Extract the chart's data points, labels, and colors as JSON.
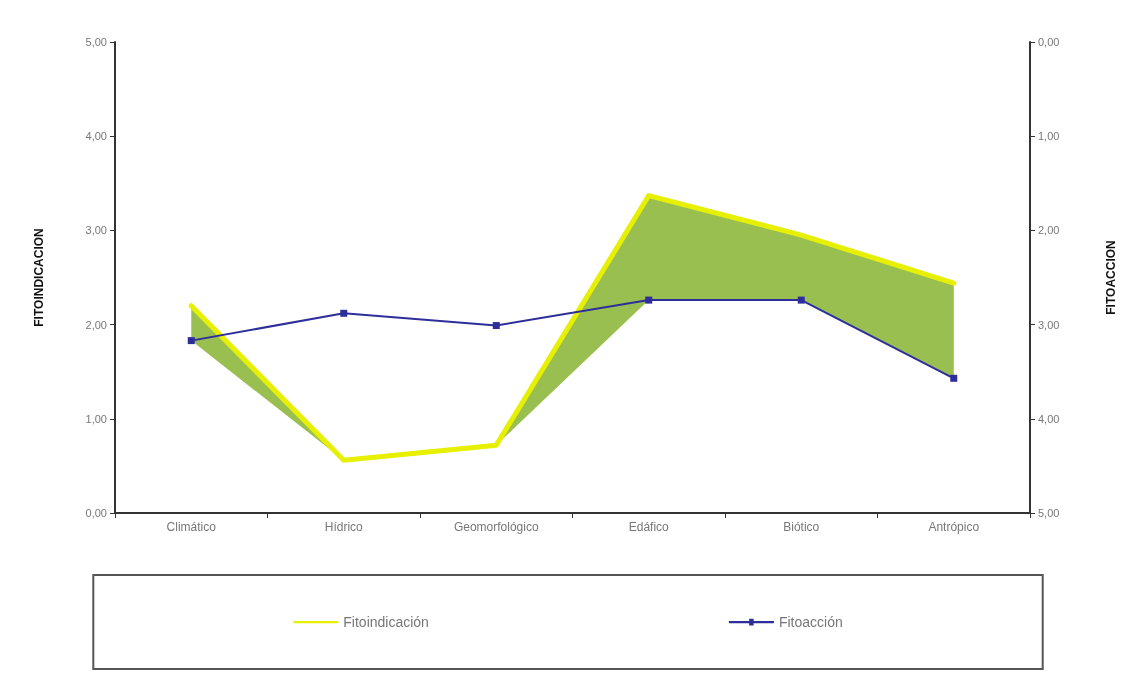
{
  "chart_data": {
    "type": "line",
    "ylabel": "FITOINDICACION",
    "y2label": "FITOACCION",
    "categories": [
      "Climático",
      "Hídrico",
      "Geomorfológico",
      "Edáfico",
      "Biótico",
      "Antrópico"
    ],
    "series": [
      {
        "name": "Fitoindicación",
        "color": "#e6f000",
        "marker": "none",
        "values": [
          2.2,
          0.56,
          0.72,
          3.37,
          2.95,
          2.44
        ],
        "lower": [
          1.83,
          0.56,
          0.72,
          2.26,
          2.26,
          1.43
        ],
        "upper": [
          2.2,
          0.56,
          0.72,
          3.37,
          2.95,
          2.44
        ]
      },
      {
        "name": "Fitoacción",
        "color": "#2e2e9a",
        "marker": "square",
        "axis": "y2",
        "values": [
          3.17,
          2.88,
          3.01,
          2.74,
          2.74,
          3.57
        ]
      }
    ],
    "ylim": [
      0,
      5
    ],
    "yticks": [
      {
        "value": 0,
        "label": "0,00"
      },
      {
        "value": 1,
        "label": "1,00"
      },
      {
        "value": 2,
        "label": "2,00"
      },
      {
        "value": 3,
        "label": "3,00"
      },
      {
        "value": 4,
        "label": "4,00"
      },
      {
        "value": 5,
        "label": "5,00"
      }
    ],
    "y2lim": [
      5,
      0
    ],
    "y2ticks": [
      {
        "value": 0,
        "label": "0,00"
      },
      {
        "value": 1,
        "label": "1,00"
      },
      {
        "value": 2,
        "label": "2,00"
      },
      {
        "value": 3,
        "label": "3,00"
      },
      {
        "value": 4,
        "label": "4,00"
      },
      {
        "value": 5,
        "label": "5,00"
      }
    ],
    "grid": false,
    "legend": "bottom",
    "line_style": "solid"
  }
}
